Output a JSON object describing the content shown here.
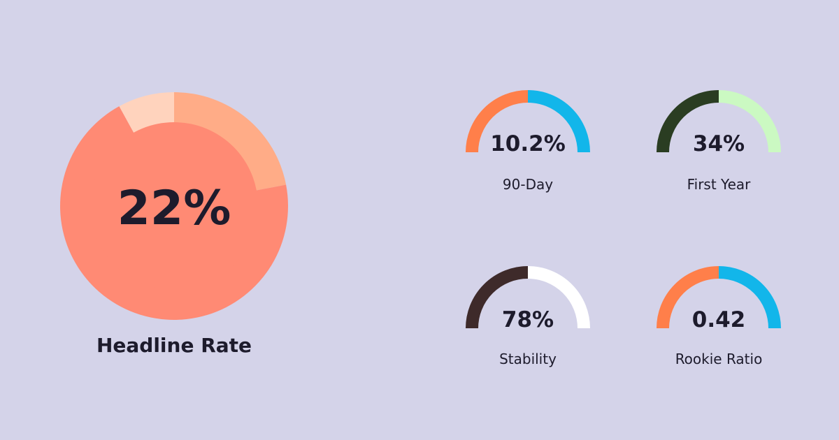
{
  "chart_data": [
    {
      "type": "pie",
      "title": "Headline Rate",
      "value_label": "22%",
      "segments": [
        {
          "value": 22,
          "color": "#ffac87"
        },
        {
          "value": 70,
          "color": "#ff8a74"
        },
        {
          "value": 8,
          "color": "#ffd3bd"
        }
      ]
    },
    {
      "type": "gauge",
      "title": "90-Day",
      "value_label": "10.2%",
      "segments": [
        {
          "value": 50,
          "color": "#ff7f4a"
        },
        {
          "value": 50,
          "color": "#12b6ea"
        }
      ]
    },
    {
      "type": "gauge",
      "title": "First Year",
      "value_label": "34%",
      "segments": [
        {
          "value": 50,
          "color": "#2a3d22"
        },
        {
          "value": 50,
          "color": "#cbf9c2"
        }
      ]
    },
    {
      "type": "gauge",
      "title": "Stability",
      "value_label": "78%",
      "segments": [
        {
          "value": 50,
          "color": "#3e2a2a"
        },
        {
          "value": 50,
          "color": "#ffffff"
        }
      ]
    },
    {
      "type": "gauge",
      "title": "Rookie Ratio",
      "value_label": "0.42",
      "segments": [
        {
          "value": 50,
          "color": "#ff7f4a"
        },
        {
          "value": 50,
          "color": "#12b6ea"
        }
      ]
    }
  ]
}
